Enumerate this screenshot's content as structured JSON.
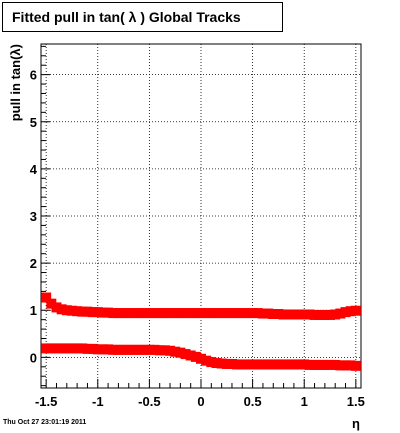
{
  "chart_data": {
    "type": "scatter",
    "title": "Fitted pull in tan( λ )  Global Tracks",
    "xlabel": "η",
    "ylabel": "pull in tan(λ)",
    "xlim": [
      -1.55,
      1.55
    ],
    "ylim": [
      -0.65,
      6.65
    ],
    "x_ticks": [
      -1.5,
      -1,
      -0.5,
      0,
      0.5,
      1,
      1.5
    ],
    "x_tick_labels": [
      "-1.5",
      "-1",
      "-0.5",
      "0",
      "0.5",
      "1",
      "1.5"
    ],
    "y_ticks": [
      0,
      1,
      2,
      3,
      4,
      5,
      6
    ],
    "y_tick_labels": [
      "0",
      "1",
      "2",
      "3",
      "4",
      "5",
      "6"
    ],
    "grid": true,
    "marker_color": "#ff0000",
    "series": [
      {
        "x": [
          -1.5,
          -1.45,
          -1.4,
          -1.35,
          -1.3,
          -1.25,
          -1.2,
          -1.15,
          -1.1,
          -1.05,
          -1.0,
          -0.95,
          -0.9,
          -0.85,
          -0.8,
          -0.75,
          -0.7,
          -0.65,
          -0.6,
          -0.55,
          -0.5,
          -0.45,
          -0.4,
          -0.35,
          -0.3,
          -0.25,
          -0.2,
          -0.15,
          -0.1,
          -0.05,
          0.0,
          0.05,
          0.1,
          0.15,
          0.2,
          0.25,
          0.3,
          0.35,
          0.4,
          0.45,
          0.5,
          0.55,
          0.6,
          0.65,
          0.7,
          0.75,
          0.8,
          0.85,
          0.9,
          0.95,
          1.0,
          1.05,
          1.1,
          1.15,
          1.2,
          1.25,
          1.3,
          1.35,
          1.4,
          1.45,
          1.5
        ],
        "y": [
          1.27,
          1.14,
          1.06,
          1.02,
          1.0,
          0.99,
          0.98,
          0.97,
          0.97,
          0.96,
          0.96,
          0.95,
          0.95,
          0.94,
          0.94,
          0.94,
          0.94,
          0.94,
          0.94,
          0.94,
          0.94,
          0.94,
          0.94,
          0.94,
          0.94,
          0.94,
          0.94,
          0.94,
          0.94,
          0.94,
          0.94,
          0.94,
          0.94,
          0.94,
          0.94,
          0.94,
          0.94,
          0.94,
          0.94,
          0.94,
          0.94,
          0.94,
          0.93,
          0.93,
          0.92,
          0.92,
          0.91,
          0.91,
          0.91,
          0.91,
          0.91,
          0.91,
          0.9,
          0.9,
          0.9,
          0.9,
          0.91,
          0.93,
          0.96,
          0.98,
          0.99
        ]
      },
      {
        "x": [
          -1.5,
          -1.45,
          -1.4,
          -1.35,
          -1.3,
          -1.25,
          -1.2,
          -1.15,
          -1.1,
          -1.05,
          -1.0,
          -0.95,
          -0.9,
          -0.85,
          -0.8,
          -0.75,
          -0.7,
          -0.65,
          -0.6,
          -0.55,
          -0.5,
          -0.45,
          -0.4,
          -0.35,
          -0.3,
          -0.25,
          -0.2,
          -0.15,
          -0.1,
          -0.05,
          0.0,
          0.05,
          0.1,
          0.15,
          0.2,
          0.25,
          0.3,
          0.35,
          0.4,
          0.45,
          0.5,
          0.55,
          0.6,
          0.65,
          0.7,
          0.75,
          0.8,
          0.85,
          0.9,
          0.95,
          1.0,
          1.05,
          1.1,
          1.15,
          1.2,
          1.25,
          1.3,
          1.35,
          1.4,
          1.45,
          1.5
        ],
        "y": [
          0.19,
          0.19,
          0.19,
          0.19,
          0.19,
          0.19,
          0.19,
          0.19,
          0.18,
          0.18,
          0.17,
          0.17,
          0.17,
          0.16,
          0.16,
          0.16,
          0.16,
          0.16,
          0.16,
          0.16,
          0.16,
          0.16,
          0.15,
          0.15,
          0.14,
          0.12,
          0.1,
          0.07,
          0.04,
          0.01,
          -0.03,
          -0.07,
          -0.1,
          -0.12,
          -0.13,
          -0.14,
          -0.14,
          -0.15,
          -0.15,
          -0.15,
          -0.15,
          -0.15,
          -0.15,
          -0.15,
          -0.15,
          -0.15,
          -0.15,
          -0.15,
          -0.15,
          -0.15,
          -0.15,
          -0.16,
          -0.16,
          -0.16,
          -0.16,
          -0.16,
          -0.16,
          -0.17,
          -0.17,
          -0.17,
          -0.18
        ]
      }
    ],
    "footer_date": "Thu Oct 27 23:01:19 2011"
  }
}
